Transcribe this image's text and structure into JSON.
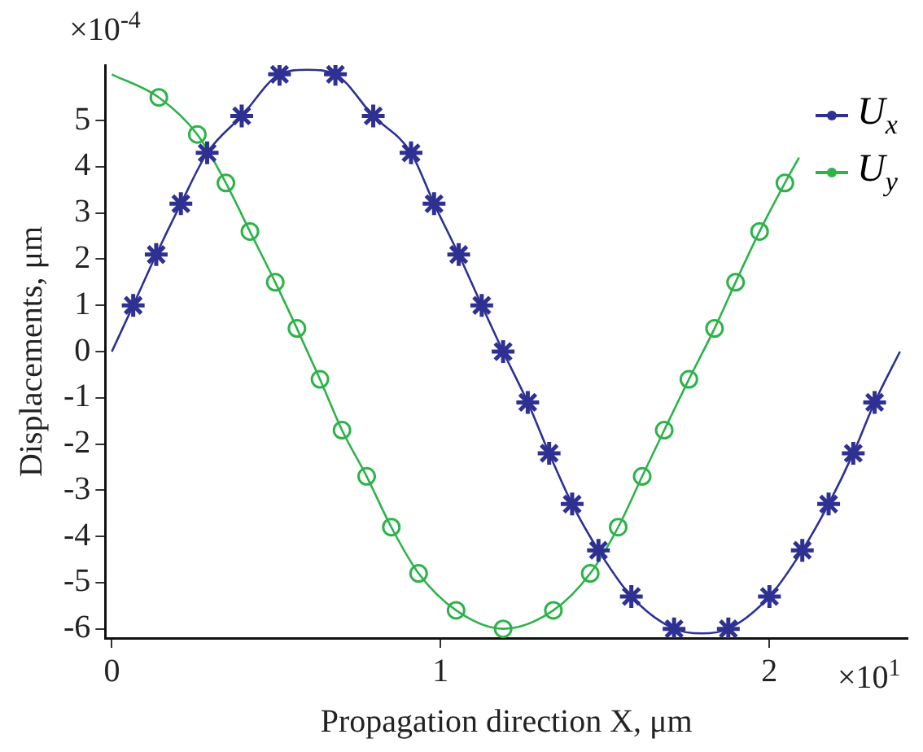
{
  "chart_data": {
    "type": "line",
    "xlabel": "Propagation direction X, μm",
    "ylabel": "Displacements, μm",
    "xlim": [
      -0.02,
      2.42
    ],
    "xticks": [
      0,
      1,
      2
    ],
    "ylim": [
      -6.2,
      6.2
    ],
    "yticks": [
      -6,
      -5,
      -4,
      -3,
      -2,
      -1,
      0,
      1,
      2,
      3,
      4,
      5
    ],
    "legend": "top right",
    "annotations": [
      "×10$^{-4}$",
      "×10$^{1}$"
    ],
    "series": [
      {
        "marker": "none",
        "color": "#2e3192",
        "x": [
          0,
          0.065,
          0.135,
          0.21,
          0.29,
          0.395,
          0.51,
          0.595,
          0.68,
          0.795,
          0.91,
          0.98,
          1.055,
          1.125,
          1.19,
          1.265,
          1.33,
          1.4,
          1.48,
          1.58,
          1.71,
          1.795,
          1.875,
          2.0,
          2.1,
          2.18,
          2.255,
          2.32,
          2.397
        ],
        "values": [
          0,
          1.0,
          2.1,
          3.2,
          4.3,
          5.1,
          6.0,
          6.1,
          6.0,
          5.1,
          4.3,
          3.2,
          2.1,
          1.0,
          0,
          -1.1,
          -2.2,
          -3.3,
          -4.3,
          -5.3,
          -6.0,
          -6.1,
          -6.0,
          -5.3,
          -4.3,
          -3.3,
          -2.2,
          -1.1,
          0
        ]
      },
      {
        "type": "scatter",
        "name": "U$_{x}$",
        "marker": "cross",
        "color": "#2e3192",
        "x": [
          0.065,
          0.135,
          0.21,
          0.29,
          0.395,
          0.51,
          0.68,
          0.795,
          0.91,
          0.98,
          1.055,
          1.125,
          1.19,
          1.265,
          1.33,
          1.4,
          1.48,
          1.58,
          1.71,
          1.875,
          2.0,
          2.1,
          2.18,
          2.255,
          2.32
        ],
        "values": [
          1.0,
          2.1,
          3.2,
          4.3,
          5.1,
          6.0,
          6.0,
          5.1,
          4.3,
          3.2,
          2.1,
          1.0,
          0,
          -1.1,
          -2.2,
          -3.3,
          -4.3,
          -5.3,
          -6.0,
          -6.0,
          -5.3,
          -4.3,
          -3.3,
          -2.2,
          -1.1
        ]
      },
      {
        "marker": "none",
        "color": "#2db34a",
        "x": [
          0,
          0.143,
          0.26,
          0.347,
          0.42,
          0.497,
          0.563,
          0.633,
          0.7,
          0.775,
          0.85,
          0.933,
          1.047,
          1.19,
          1.343,
          1.455,
          1.54,
          1.613,
          1.68,
          1.755,
          1.833,
          1.897,
          1.97,
          2.047,
          2.09
        ],
        "values": [
          6.0,
          5.5,
          4.7,
          3.65,
          2.6,
          1.5,
          0.5,
          -0.6,
          -1.7,
          -2.7,
          -3.8,
          -4.8,
          -5.6,
          -6.0,
          -5.6,
          -4.8,
          -3.8,
          -2.7,
          -1.7,
          -0.6,
          0.5,
          1.5,
          2.6,
          3.65,
          4.2
        ]
      },
      {
        "type": "scatter",
        "name": "U$_{y}$",
        "marker": "circle",
        "color": "#2db34a",
        "x": [
          0.143,
          0.26,
          0.347,
          0.42,
          0.497,
          0.563,
          0.633,
          0.7,
          0.775,
          0.85,
          0.933,
          1.047,
          1.19,
          1.343,
          1.455,
          1.54,
          1.613,
          1.68,
          1.755,
          1.833,
          1.897,
          1.97,
          2.047
        ],
        "values": [
          5.5,
          4.7,
          3.65,
          2.6,
          1.5,
          0.5,
          -0.6,
          -1.7,
          -2.7,
          -3.8,
          -4.8,
          -5.6,
          -6.0,
          -5.6,
          -4.8,
          -3.8,
          -2.7,
          -1.7,
          -0.6,
          0.5,
          1.5,
          2.6,
          3.65
        ]
      }
    ]
  }
}
